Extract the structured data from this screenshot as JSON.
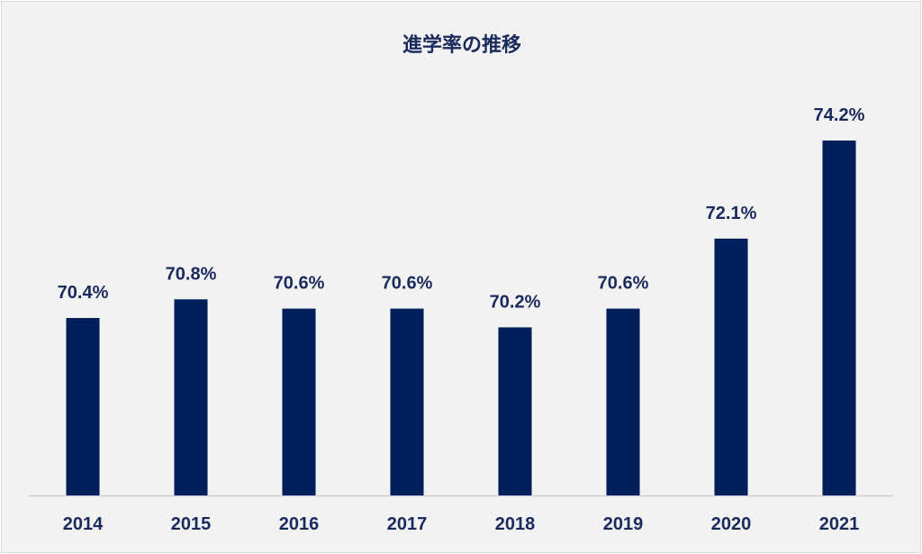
{
  "chart_data": {
    "type": "bar",
    "title": "進学率の推移",
    "xlabel": "",
    "ylabel": "",
    "categories": [
      "2014",
      "2015",
      "2016",
      "2017",
      "2018",
      "2019",
      "2020",
      "2021"
    ],
    "values": [
      70.4,
      70.8,
      70.6,
      70.6,
      70.2,
      70.6,
      72.1,
      74.2
    ],
    "data_labels": [
      "70.4%",
      "70.8%",
      "70.6%",
      "70.6%",
      "70.2%",
      "70.6%",
      "72.1%",
      "74.2%"
    ],
    "bar_color": "#001f5b",
    "grid": false,
    "legend": "none"
  }
}
